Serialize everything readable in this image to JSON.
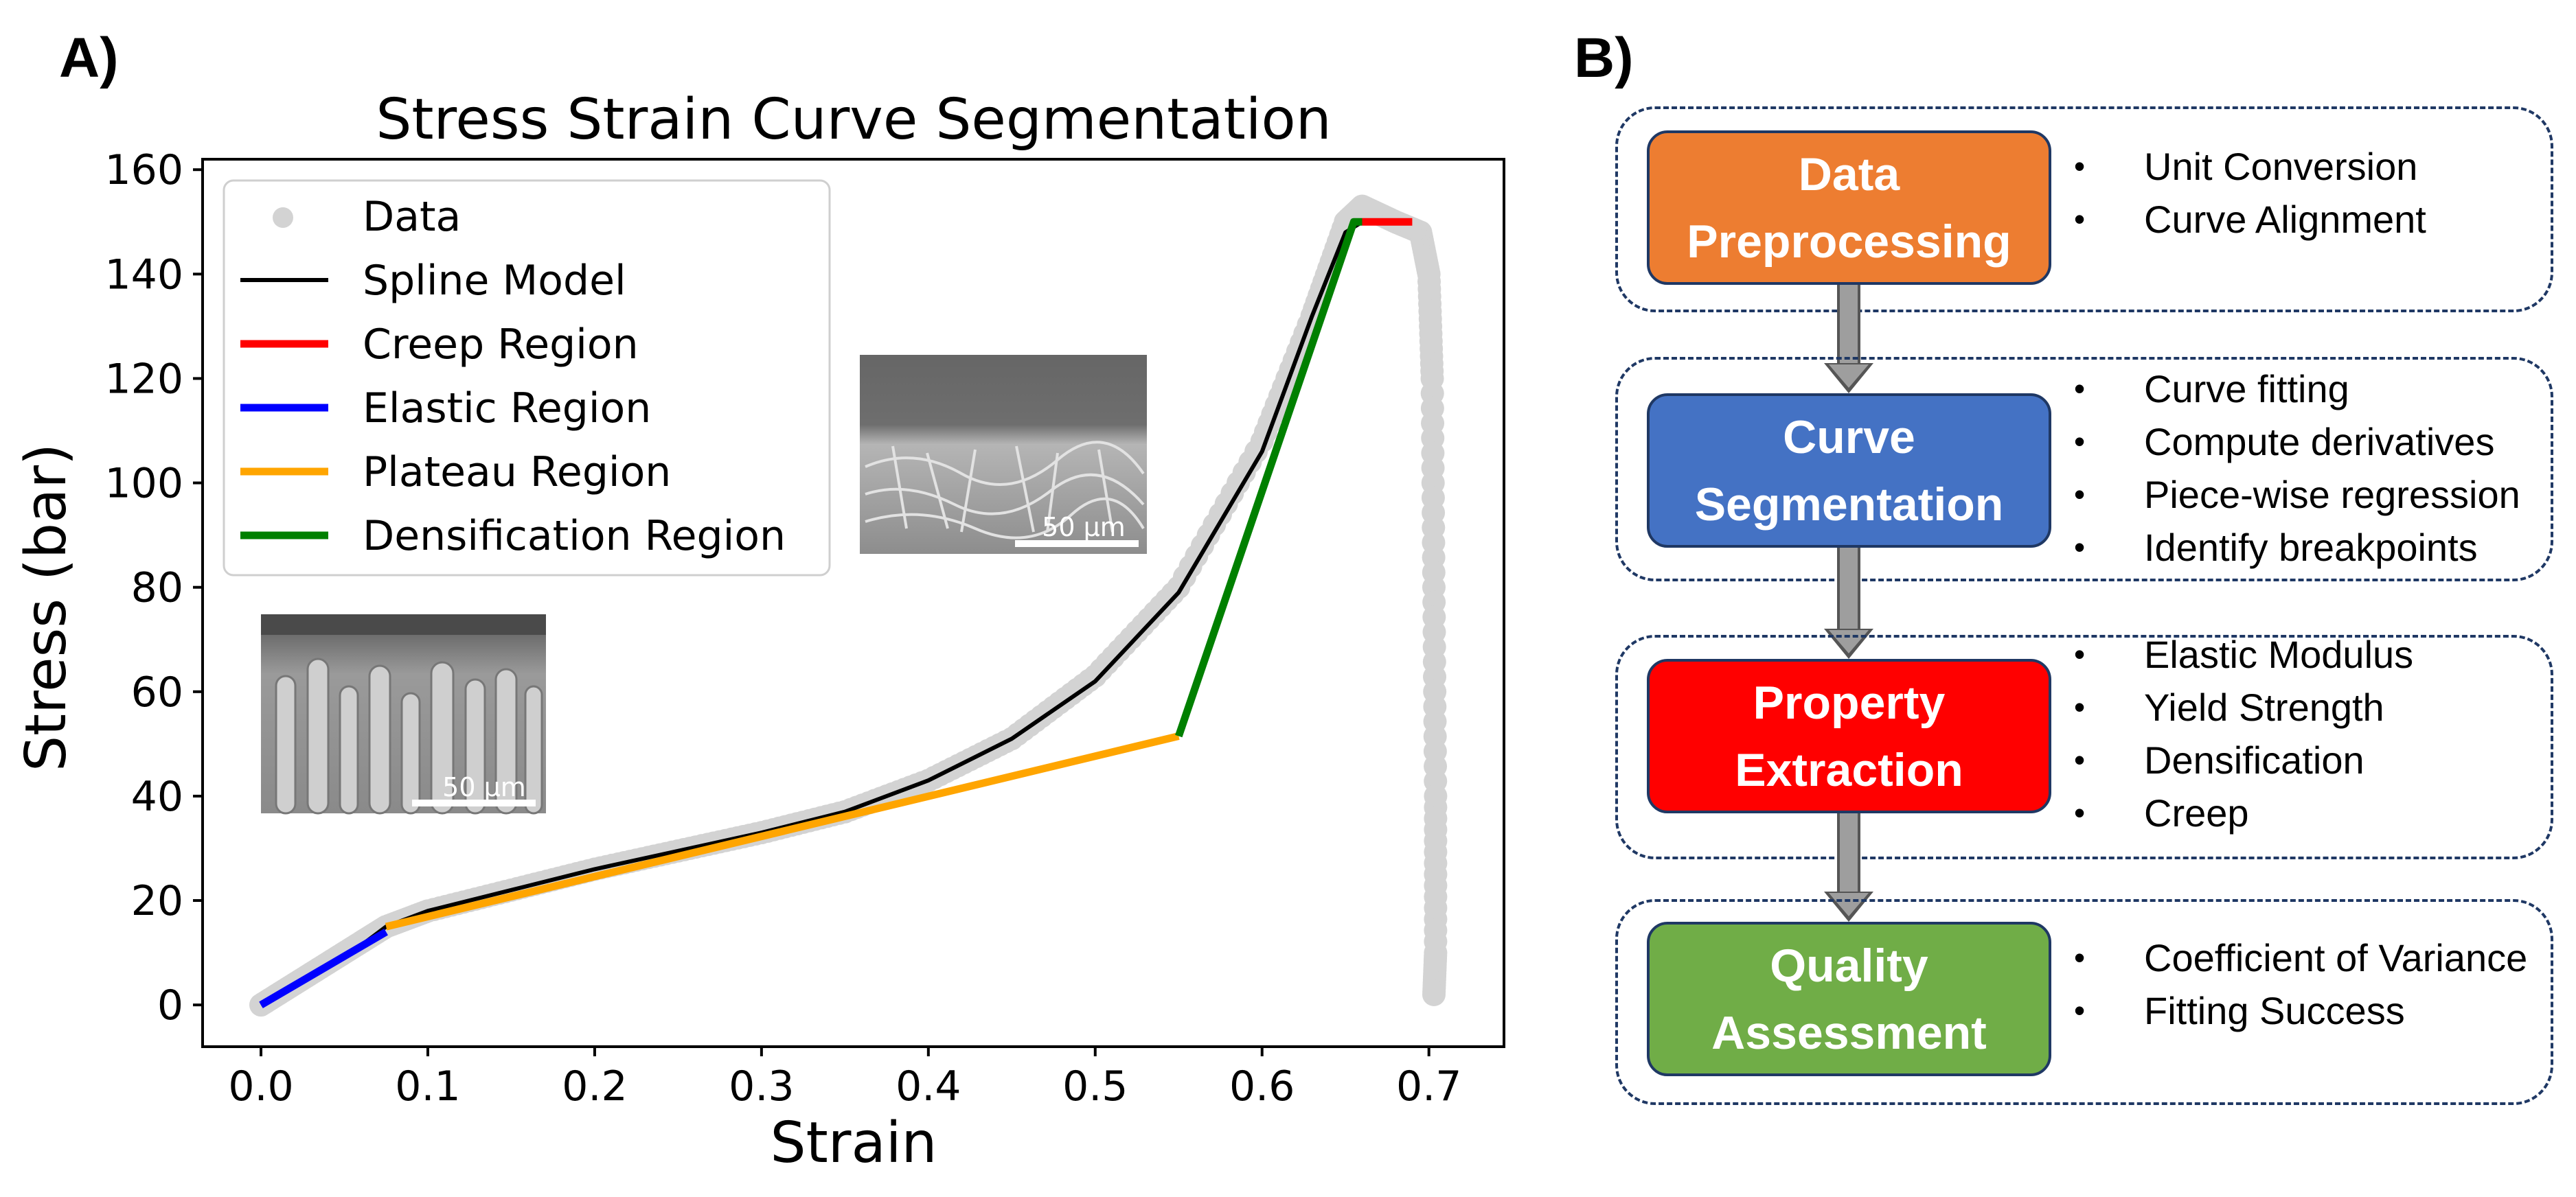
{
  "panels": {
    "a_label": "A)",
    "b_label": "B)"
  },
  "chart_data": {
    "type": "line",
    "title": "Stress Strain Curve Segmentation",
    "xlabel": "Strain",
    "ylabel": "Stress (bar)",
    "xlim": [
      -0.035,
      0.745
    ],
    "ylim": [
      -8,
      162
    ],
    "xticks": [
      0.0,
      0.1,
      0.2,
      0.3,
      0.4,
      0.5,
      0.6,
      0.7
    ],
    "xtick_labels": [
      "0.0",
      "0.1",
      "0.2",
      "0.3",
      "0.4",
      "0.5",
      "0.6",
      "0.7"
    ],
    "yticks": [
      0,
      20,
      40,
      60,
      80,
      100,
      120,
      140,
      160
    ],
    "ytick_labels": [
      "0",
      "20",
      "40",
      "60",
      "80",
      "100",
      "120",
      "140",
      "160"
    ],
    "grid": false,
    "legend_position": "top-left",
    "series": [
      {
        "name": "Data",
        "kind": "scatter",
        "color": "#d3d3d3",
        "x": [
          0.0,
          0.02,
          0.04,
          0.06,
          0.075,
          0.1,
          0.15,
          0.2,
          0.25,
          0.3,
          0.35,
          0.4,
          0.45,
          0.5,
          0.55,
          0.6,
          0.63,
          0.65,
          0.66,
          0.68,
          0.695,
          0.7,
          0.702,
          0.703,
          0.704,
          0.704,
          0.703
        ],
        "y": [
          0,
          4,
          8,
          12,
          15,
          18,
          22,
          26,
          29.5,
          33,
          37,
          43,
          51,
          63,
          80,
          108,
          132,
          150,
          153,
          150,
          148,
          140,
          120,
          80,
          40,
          10,
          2
        ]
      },
      {
        "name": "Spline Model",
        "kind": "line",
        "color": "#000000",
        "x": [
          0.0,
          0.05,
          0.075,
          0.1,
          0.15,
          0.2,
          0.25,
          0.3,
          0.35,
          0.4,
          0.45,
          0.5,
          0.55,
          0.6,
          0.63,
          0.65,
          0.66
        ],
        "y": [
          0,
          9,
          15,
          18,
          22,
          26,
          29.5,
          33,
          37,
          43,
          51,
          62,
          79,
          106,
          132,
          148,
          150
        ]
      },
      {
        "name": "Creep Region",
        "kind": "line",
        "color": "#ff0000",
        "x": [
          0.66,
          0.69
        ],
        "y": [
          150,
          150
        ]
      },
      {
        "name": "Elastic Region",
        "kind": "line",
        "color": "#0000ff",
        "x": [
          0.0,
          0.075
        ],
        "y": [
          0,
          14
        ]
      },
      {
        "name": "Plateau Region",
        "kind": "line",
        "color": "#ffa500",
        "x": [
          0.075,
          0.55
        ],
        "y": [
          15,
          51.5
        ]
      },
      {
        "name": "Densification Region",
        "kind": "line",
        "color": "#008000",
        "x": [
          0.55,
          0.655,
          0.66
        ],
        "y": [
          51.5,
          150,
          150
        ]
      }
    ],
    "insets": [
      {
        "caption": "50 µm"
      },
      {
        "caption": "50 µm"
      }
    ]
  },
  "flowchart": {
    "steps": [
      {
        "label": "Data\nPreprocessing",
        "color": "#ed7d31",
        "bullets": [
          "Unit Conversion",
          "Curve Alignment"
        ]
      },
      {
        "label": "Curve\nSegmentation",
        "color": "#4472c4",
        "bullets": [
          "Curve fitting",
          "Compute derivatives",
          "Piece-wise regression",
          "Identify breakpoints"
        ]
      },
      {
        "label": "Property\nExtraction",
        "color": "#ff0000",
        "bullets": [
          "Elastic Modulus",
          "Yield Strength",
          "Densification",
          "Creep"
        ]
      },
      {
        "label": "Quality\nAssessment",
        "color": "#70ad47",
        "bullets": [
          "Coefficient of Variance",
          "Fitting Success"
        ]
      }
    ]
  }
}
